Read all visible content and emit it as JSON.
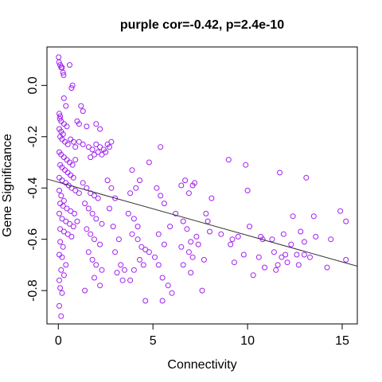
{
  "chart_data": {
    "type": "scatter",
    "title": "purple cor=-0.42, p=2.4e-10",
    "xlabel": "Connectivity",
    "ylabel": "Gene Significance",
    "xlim": [
      -0.6,
      15.8
    ],
    "ylim": [
      -0.93,
      0.15
    ],
    "x_ticks": [
      0,
      5,
      10,
      15
    ],
    "x_tick_labels": [
      "0",
      "5",
      "10",
      "15"
    ],
    "y_ticks": [
      0.0,
      -0.2,
      -0.4,
      -0.6,
      -0.8
    ],
    "y_tick_labels": [
      "0.0",
      "-0.2",
      "-0.4",
      "-0.6",
      "-0.8"
    ],
    "point_color": "#a020f0",
    "line_color": "#333333",
    "grid": false,
    "legend": "none",
    "regression_line": {
      "x": [
        -0.6,
        15.8
      ],
      "y": [
        -0.365,
        -0.705
      ]
    },
    "points": [
      [
        0.02,
        0.11
      ],
      [
        0.04,
        0.09
      ],
      [
        0.1,
        0.08
      ],
      [
        0.15,
        0.07
      ],
      [
        0.2,
        0.07
      ],
      [
        0.25,
        0.05
      ],
      [
        0.28,
        0.04
      ],
      [
        0.6,
        0.08
      ],
      [
        0.75,
        0.0
      ],
      [
        0.7,
        -0.01
      ],
      [
        0.3,
        -0.05
      ],
      [
        0.4,
        -0.08
      ],
      [
        0.05,
        -0.11
      ],
      [
        0.1,
        -0.12
      ],
      [
        0.08,
        -0.13
      ],
      [
        0.15,
        -0.14
      ],
      [
        0.3,
        -0.15
      ],
      [
        0.45,
        -0.16
      ],
      [
        1.2,
        -0.08
      ],
      [
        1.3,
        -0.1
      ],
      [
        1.0,
        -0.14
      ],
      [
        1.1,
        -0.15
      ],
      [
        1.5,
        -0.16
      ],
      [
        2.0,
        -0.15
      ],
      [
        2.2,
        -0.17
      ],
      [
        0.05,
        -0.17
      ],
      [
        0.15,
        -0.18
      ],
      [
        0.25,
        -0.19
      ],
      [
        0.1,
        -0.2
      ],
      [
        0.2,
        -0.21
      ],
      [
        0.35,
        -0.22
      ],
      [
        0.5,
        -0.23
      ],
      [
        0.65,
        -0.21
      ],
      [
        0.8,
        -0.22
      ],
      [
        0.9,
        -0.24
      ],
      [
        1.1,
        -0.22
      ],
      [
        1.3,
        -0.23
      ],
      [
        1.6,
        -0.24
      ],
      [
        1.8,
        -0.25
      ],
      [
        2.0,
        -0.23
      ],
      [
        2.2,
        -0.24
      ],
      [
        2.4,
        -0.25
      ],
      [
        2.6,
        -0.23
      ],
      [
        2.8,
        -0.22
      ],
      [
        2.7,
        -0.24
      ],
      [
        2.5,
        -0.26
      ],
      [
        2.3,
        -0.27
      ],
      [
        2.1,
        -0.26
      ],
      [
        1.9,
        -0.27
      ],
      [
        1.7,
        -0.28
      ],
      [
        0.05,
        -0.26
      ],
      [
        0.15,
        -0.27
      ],
      [
        0.3,
        -0.28
      ],
      [
        0.45,
        -0.29
      ],
      [
        0.6,
        -0.3
      ],
      [
        0.75,
        -0.31
      ],
      [
        0.9,
        -0.29
      ],
      [
        0.1,
        -0.31
      ],
      [
        0.2,
        -0.32
      ],
      [
        0.35,
        -0.33
      ],
      [
        0.5,
        -0.34
      ],
      [
        0.65,
        -0.35
      ],
      [
        0.8,
        -0.36
      ],
      [
        0.05,
        -0.36
      ],
      [
        0.2,
        -0.37
      ],
      [
        0.4,
        -0.38
      ],
      [
        0.55,
        -0.39
      ],
      [
        0.7,
        -0.4
      ],
      [
        0.9,
        -0.41
      ],
      [
        1.1,
        -0.42
      ],
      [
        0.05,
        -0.41
      ],
      [
        0.15,
        -0.43
      ],
      [
        0.3,
        -0.45
      ],
      [
        0.1,
        -0.46
      ],
      [
        0.25,
        -0.47
      ],
      [
        0.45,
        -0.48
      ],
      [
        0.65,
        -0.49
      ],
      [
        0.85,
        -0.5
      ],
      [
        0.05,
        -0.5
      ],
      [
        0.2,
        -0.52
      ],
      [
        0.4,
        -0.53
      ],
      [
        0.6,
        -0.54
      ],
      [
        0.8,
        -0.55
      ],
      [
        1.0,
        -0.53
      ],
      [
        0.1,
        -0.56
      ],
      [
        0.3,
        -0.57
      ],
      [
        0.5,
        -0.58
      ],
      [
        0.7,
        -0.59
      ],
      [
        0.1,
        -0.61
      ],
      [
        0.25,
        -0.63
      ],
      [
        0.05,
        -0.66
      ],
      [
        0.2,
        -0.67
      ],
      [
        0.4,
        -0.7
      ],
      [
        0.15,
        -0.72
      ],
      [
        0.3,
        -0.74
      ],
      [
        0.05,
        -0.76
      ],
      [
        0.1,
        -0.79
      ],
      [
        0.2,
        -0.81
      ],
      [
        0.05,
        -0.86
      ],
      [
        0.15,
        -0.9
      ],
      [
        1.3,
        -0.38
      ],
      [
        1.5,
        -0.4
      ],
      [
        1.7,
        -0.42
      ],
      [
        1.9,
        -0.43
      ],
      [
        2.1,
        -0.44
      ],
      [
        1.4,
        -0.46
      ],
      [
        1.6,
        -0.48
      ],
      [
        1.8,
        -0.5
      ],
      [
        2.0,
        -0.52
      ],
      [
        2.3,
        -0.54
      ],
      [
        1.5,
        -0.56
      ],
      [
        1.7,
        -0.58
      ],
      [
        1.9,
        -0.6
      ],
      [
        2.2,
        -0.62
      ],
      [
        1.6,
        -0.65
      ],
      [
        1.8,
        -0.68
      ],
      [
        2.0,
        -0.7
      ],
      [
        2.3,
        -0.72
      ],
      [
        1.9,
        -0.75
      ],
      [
        2.2,
        -0.78
      ],
      [
        1.4,
        -0.8
      ],
      [
        2.6,
        -0.37
      ],
      [
        2.8,
        -0.4
      ],
      [
        3.0,
        -0.44
      ],
      [
        2.7,
        -0.48
      ],
      [
        2.9,
        -0.55
      ],
      [
        3.2,
        -0.6
      ],
      [
        3.0,
        -0.65
      ],
      [
        3.3,
        -0.7
      ],
      [
        3.1,
        -0.73
      ],
      [
        3.4,
        -0.76
      ],
      [
        3.5,
        -0.72
      ],
      [
        3.9,
        -0.33
      ],
      [
        3.8,
        -0.42
      ],
      [
        4.1,
        -0.4
      ],
      [
        4.3,
        -0.37
      ],
      [
        3.7,
        -0.5
      ],
      [
        4.0,
        -0.52
      ],
      [
        4.2,
        -0.55
      ],
      [
        3.9,
        -0.58
      ],
      [
        4.2,
        -0.6
      ],
      [
        4.4,
        -0.63
      ],
      [
        4.6,
        -0.64
      ],
      [
        4.8,
        -0.65
      ],
      [
        4.3,
        -0.68
      ],
      [
        4.5,
        -0.7
      ],
      [
        4.0,
        -0.72
      ],
      [
        4.6,
        -0.84
      ],
      [
        3.8,
        -0.76
      ],
      [
        4.8,
        -0.3
      ],
      [
        5.2,
        -0.4
      ],
      [
        5.4,
        -0.43
      ],
      [
        5.6,
        -0.46
      ],
      [
        5.4,
        -0.24
      ],
      [
        5.3,
        -0.58
      ],
      [
        5.6,
        -0.62
      ],
      [
        5.1,
        -0.67
      ],
      [
        5.3,
        -0.7
      ],
      [
        5.5,
        -0.75
      ],
      [
        5.8,
        -0.78
      ],
      [
        5.5,
        -0.84
      ],
      [
        6.0,
        -0.81
      ],
      [
        5.9,
        -0.55
      ],
      [
        6.2,
        -0.5
      ],
      [
        6.5,
        -0.39
      ],
      [
        6.7,
        -0.37
      ],
      [
        6.9,
        -0.42
      ],
      [
        7.1,
        -0.39
      ],
      [
        7.2,
        -0.38
      ],
      [
        6.6,
        -0.53
      ],
      [
        6.8,
        -0.56
      ],
      [
        7.0,
        -0.61
      ],
      [
        7.3,
        -0.59
      ],
      [
        6.5,
        -0.63
      ],
      [
        6.9,
        -0.65
      ],
      [
        7.1,
        -0.67
      ],
      [
        7.4,
        -0.62
      ],
      [
        6.6,
        -0.7
      ],
      [
        7.0,
        -0.73
      ],
      [
        7.6,
        -0.8
      ],
      [
        7.8,
        -0.5
      ],
      [
        7.9,
        -0.53
      ],
      [
        8.1,
        -0.44
      ],
      [
        8.0,
        -0.57
      ],
      [
        7.7,
        -0.68
      ],
      [
        8.6,
        -0.58
      ],
      [
        9.0,
        -0.29
      ],
      [
        9.2,
        -0.6
      ],
      [
        9.5,
        -0.59
      ],
      [
        9.1,
        -0.62
      ],
      [
        9.3,
        -0.69
      ],
      [
        9.9,
        -0.31
      ],
      [
        10.0,
        -0.41
      ],
      [
        10.1,
        -0.55
      ],
      [
        9.8,
        -0.66
      ],
      [
        10.3,
        -0.74
      ],
      [
        10.7,
        -0.59
      ],
      [
        10.6,
        -0.67
      ],
      [
        10.9,
        -0.71
      ],
      [
        11.3,
        -0.6
      ],
      [
        11.4,
        -0.65
      ],
      [
        11.5,
        -0.72
      ],
      [
        11.7,
        -0.34
      ],
      [
        11.9,
        -0.58
      ],
      [
        11.8,
        -0.67
      ],
      [
        12.1,
        -0.69
      ],
      [
        12.4,
        -0.51
      ],
      [
        12.6,
        -0.66
      ],
      [
        12.7,
        -0.7
      ],
      [
        12.8,
        -0.57
      ],
      [
        13.0,
        -0.61
      ],
      [
        13.1,
        -0.36
      ],
      [
        13.3,
        -0.67
      ],
      [
        13.5,
        -0.51
      ],
      [
        13.6,
        -0.59
      ],
      [
        13.0,
        -0.66
      ],
      [
        14.2,
        -0.71
      ],
      [
        14.4,
        -0.6
      ],
      [
        14.9,
        -0.49
      ],
      [
        15.2,
        -0.53
      ],
      [
        15.2,
        -0.68
      ],
      [
        12.0,
        -0.66
      ],
      [
        11.6,
        -0.7
      ],
      [
        12.3,
        -0.62
      ],
      [
        10.8,
        -0.6
      ]
    ]
  }
}
